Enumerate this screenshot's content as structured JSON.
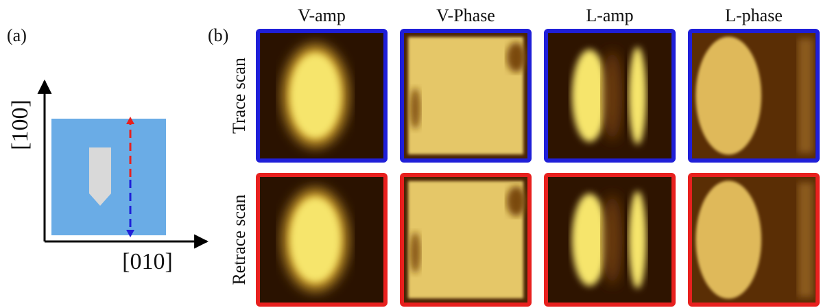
{
  "panel_a": {
    "label": "(a)",
    "y_axis_label": "[100]",
    "x_axis_label": "[010]"
  },
  "panel_b": {
    "label": "(b)",
    "columns": [
      "V-amp",
      "V-Phase",
      "L-amp",
      "L-phase"
    ],
    "rows": [
      "Trace scan",
      "Retrace scan"
    ]
  }
}
